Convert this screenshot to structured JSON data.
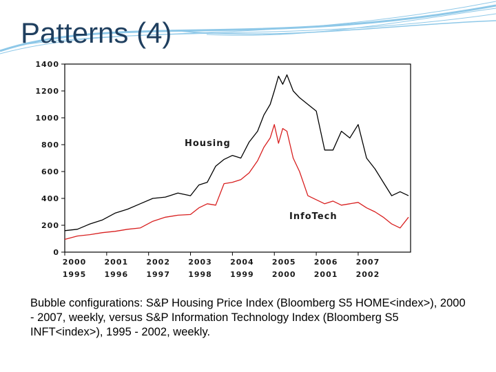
{
  "slide": {
    "title": "Patterns (4)",
    "caption": "Bubble configurations: S&P Housing Price Index (Bloomberg S5 HOME<index>), 2000 - 2007, weekly, versus S&P Information Technology Index (Bloomberg S5 INFT<index>), 1995 - 2002, weekly."
  },
  "colors": {
    "title": "#1f3f5f",
    "decoration": "#8ec8e8",
    "housing": "#000000",
    "infotech": "#d81e1e"
  },
  "chart_data": {
    "type": "line",
    "y_ticks": [
      "1400",
      "1200",
      "1000",
      "800",
      "600",
      "400",
      "200",
      "0"
    ],
    "ylim": [
      0,
      1400
    ],
    "x_ticks_top": [
      "2000",
      "2001",
      "2002",
      "2003",
      "2004",
      "2005",
      "2006",
      "2007"
    ],
    "x_ticks_bottom": [
      "1995",
      "1996",
      "1997",
      "1998",
      "1999",
      "2000",
      "2001",
      "2002"
    ],
    "xlim": [
      2000,
      2008.25
    ],
    "grid": false,
    "series": [
      {
        "name": "Housing",
        "x": [
          2000.0,
          2000.3,
          2000.6,
          2000.9,
          2001.2,
          2001.5,
          2001.8,
          2002.1,
          2002.4,
          2002.7,
          2003.0,
          2003.2,
          2003.4,
          2003.6,
          2003.8,
          2004.0,
          2004.2,
          2004.4,
          2004.6,
          2004.75,
          2004.9,
          2005.0,
          2005.1,
          2005.2,
          2005.3,
          2005.45,
          2005.6,
          2005.8,
          2006.0,
          2006.2,
          2006.4,
          2006.6,
          2006.8,
          2007.0,
          2007.2,
          2007.4,
          2007.6,
          2007.8,
          2008.0,
          2008.2
        ],
        "values": [
          160,
          170,
          210,
          240,
          290,
          320,
          360,
          400,
          410,
          440,
          420,
          500,
          520,
          640,
          690,
          720,
          700,
          820,
          900,
          1020,
          1100,
          1200,
          1310,
          1250,
          1320,
          1200,
          1150,
          1100,
          1050,
          760,
          760,
          900,
          850,
          950,
          700,
          620,
          520,
          420,
          450,
          420
        ]
      },
      {
        "name": "InfoTech",
        "x": [
          2000.0,
          2000.3,
          2000.6,
          2000.9,
          2001.2,
          2001.5,
          2001.8,
          2002.1,
          2002.4,
          2002.7,
          2003.0,
          2003.2,
          2003.4,
          2003.6,
          2003.8,
          2004.0,
          2004.2,
          2004.4,
          2004.6,
          2004.75,
          2004.9,
          2005.0,
          2005.1,
          2005.2,
          2005.3,
          2005.45,
          2005.6,
          2005.8,
          2006.0,
          2006.2,
          2006.4,
          2006.6,
          2006.8,
          2007.0,
          2007.2,
          2007.4,
          2007.6,
          2007.8,
          2008.0,
          2008.2
        ],
        "values": [
          95,
          120,
          130,
          145,
          155,
          170,
          180,
          230,
          260,
          275,
          280,
          330,
          360,
          350,
          510,
          520,
          540,
          590,
          680,
          780,
          850,
          950,
          810,
          920,
          900,
          700,
          600,
          420,
          390,
          360,
          380,
          350,
          360,
          370,
          330,
          300,
          260,
          210,
          180,
          260
        ]
      }
    ],
    "annotations": [
      "Housing",
      "InfoTech"
    ]
  }
}
